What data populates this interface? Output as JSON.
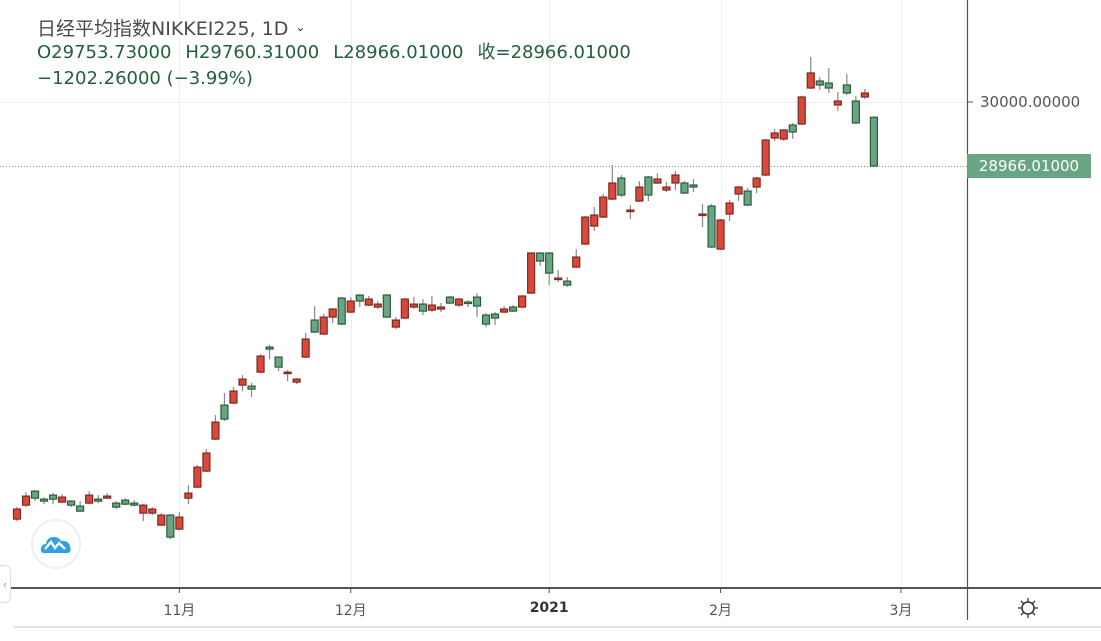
{
  "header": {
    "title": "日经平均指数NIKKEI225, 1D",
    "open": "O29753.73000",
    "high": "H29760.31000",
    "low": "L28966.01000",
    "close": "收=28966.01000",
    "change": "−1202.26000 (−3.99%)"
  },
  "colors": {
    "up": "#d9483b",
    "up_border": "#7a2a22",
    "down": "#6aa583",
    "down_border": "#2a5c3a",
    "badge": "#6aa583"
  },
  "chart_data": {
    "type": "candlestick",
    "title": "日经平均指数NIKKEI225, 1D",
    "x_ticks": [
      {
        "index": 18,
        "label": "11月",
        "bold": false
      },
      {
        "index": 37,
        "label": "12月",
        "bold": false
      },
      {
        "index": 59,
        "label": "2021",
        "bold": true
      },
      {
        "index": 78,
        "label": "2月",
        "bold": false
      },
      {
        "index": 98,
        "label": "3月",
        "bold": false
      }
    ],
    "y_ticks": [
      {
        "value": 30000,
        "label": "30000.00000"
      }
    ],
    "last_price": {
      "value": 28966.01,
      "label": "28966.01000"
    },
    "ylim": [
      22300,
      31000
    ],
    "ohlc": [
      [
        23261,
        23455,
        23229,
        23423
      ],
      [
        23487,
        23697,
        23455,
        23633
      ],
      [
        23713,
        23730,
        23552,
        23600
      ],
      [
        23584,
        23617,
        23503,
        23552
      ],
      [
        23649,
        23681,
        23503,
        23584
      ],
      [
        23536,
        23665,
        23520,
        23617
      ],
      [
        23552,
        23568,
        23455,
        23487
      ],
      [
        23471,
        23552,
        23374,
        23390
      ],
      [
        23520,
        23713,
        23503,
        23649
      ],
      [
        23584,
        23649,
        23520,
        23552
      ],
      [
        23600,
        23681,
        23584,
        23633
      ],
      [
        23520,
        23552,
        23423,
        23455
      ],
      [
        23568,
        23600,
        23487,
        23503
      ],
      [
        23520,
        23568,
        23471,
        23487
      ],
      [
        23358,
        23503,
        23229,
        23487
      ],
      [
        23358,
        23455,
        23326,
        23423
      ],
      [
        23164,
        23358,
        23148,
        23326
      ],
      [
        23326,
        23342,
        22938,
        22970
      ],
      [
        23099,
        23374,
        23083,
        23293
      ],
      [
        23600,
        23810,
        23503,
        23681
      ],
      [
        23778,
        24134,
        23762,
        24101
      ],
      [
        24037,
        24392,
        24020,
        24328
      ],
      [
        24554,
        24942,
        24538,
        24828
      ],
      [
        25103,
        25297,
        24845,
        24877
      ],
      [
        25136,
        25394,
        25119,
        25329
      ],
      [
        25426,
        25588,
        25329,
        25523
      ],
      [
        25410,
        25459,
        25232,
        25362
      ],
      [
        25636,
        25927,
        25620,
        25895
      ],
      [
        26040,
        26073,
        25846,
        26008
      ],
      [
        25879,
        25879,
        25652,
        25717
      ],
      [
        25620,
        25669,
        25491,
        25636
      ],
      [
        25475,
        25539,
        25443,
        25523
      ],
      [
        25879,
        26267,
        25863,
        26170
      ],
      [
        26477,
        26703,
        26267,
        26283
      ],
      [
        26251,
        26574,
        26235,
        26525
      ],
      [
        26525,
        26671,
        26428,
        26655
      ],
      [
        26832,
        26848,
        26396,
        26412
      ],
      [
        26606,
        26848,
        26590,
        26784
      ],
      [
        26881,
        26897,
        26687,
        26784
      ],
      [
        26719,
        26865,
        26703,
        26816
      ],
      [
        26687,
        26784,
        26655,
        26735
      ],
      [
        26881,
        26897,
        26509,
        26525
      ],
      [
        26364,
        26525,
        26331,
        26477
      ],
      [
        26509,
        26832,
        26493,
        26816
      ],
      [
        26687,
        26848,
        26655,
        26735
      ],
      [
        26735,
        26816,
        26558,
        26622
      ],
      [
        26638,
        26865,
        26606,
        26719
      ],
      [
        26655,
        26752,
        26606,
        26687
      ],
      [
        26848,
        26865,
        26735,
        26752
      ],
      [
        26719,
        26832,
        26687,
        26816
      ],
      [
        26768,
        26800,
        26687,
        26752
      ],
      [
        26848,
        26913,
        26525,
        26703
      ],
      [
        26558,
        26590,
        26364,
        26412
      ],
      [
        26574,
        26606,
        26396,
        26509
      ],
      [
        26606,
        26703,
        26590,
        26655
      ],
      [
        26687,
        26719,
        26606,
        26622
      ],
      [
        26687,
        26881,
        26671,
        26865
      ],
      [
        26913,
        27576,
        26897,
        27560
      ],
      [
        27560,
        27576,
        27349,
        27430
      ],
      [
        27560,
        27576,
        27042,
        27236
      ],
      [
        27139,
        27285,
        27091,
        27155
      ],
      [
        27107,
        27171,
        27010,
        27042
      ],
      [
        27333,
        27624,
        27317,
        27495
      ],
      [
        27705,
        28157,
        27689,
        28141
      ],
      [
        27996,
        28303,
        27915,
        28174
      ],
      [
        28141,
        28513,
        28125,
        28464
      ],
      [
        28432,
        28982,
        28416,
        28691
      ],
      [
        28771,
        28820,
        28464,
        28497
      ],
      [
        28238,
        28335,
        28109,
        28254
      ],
      [
        28400,
        28723,
        28384,
        28626
      ],
      [
        28788,
        28804,
        28400,
        28497
      ],
      [
        28691,
        28852,
        28674,
        28755
      ],
      [
        28578,
        28707,
        28545,
        28626
      ],
      [
        28691,
        28884,
        28578,
        28820
      ],
      [
        28691,
        28723,
        28513,
        28529
      ],
      [
        28659,
        28755,
        28545,
        28626
      ],
      [
        28174,
        28351,
        27980,
        28190
      ],
      [
        28319,
        28351,
        27640,
        27657
      ],
      [
        27624,
        28109,
        27608,
        28093
      ],
      [
        28190,
        28416,
        28077,
        28367
      ],
      [
        28513,
        28642,
        28400,
        28626
      ],
      [
        28561,
        28610,
        28319,
        28335
      ],
      [
        28626,
        28788,
        28529,
        28771
      ],
      [
        28820,
        29402,
        28804,
        29386
      ],
      [
        29418,
        29564,
        29370,
        29499
      ],
      [
        29402,
        29564,
        29370,
        29548
      ],
      [
        29628,
        29661,
        29402,
        29515
      ],
      [
        29644,
        30097,
        29628,
        30081
      ],
      [
        30226,
        30727,
        30210,
        30469
      ],
      [
        30339,
        30404,
        30194,
        30275
      ],
      [
        30307,
        30549,
        30145,
        30226
      ],
      [
        29952,
        30162,
        29855,
        30016
      ],
      [
        30275,
        30453,
        30113,
        30145
      ],
      [
        30016,
        30097,
        29644,
        29661
      ],
      [
        30081,
        30210,
        30048,
        30145
      ],
      [
        29753.73,
        29760.31,
        28966.01,
        28966.01
      ]
    ]
  }
}
